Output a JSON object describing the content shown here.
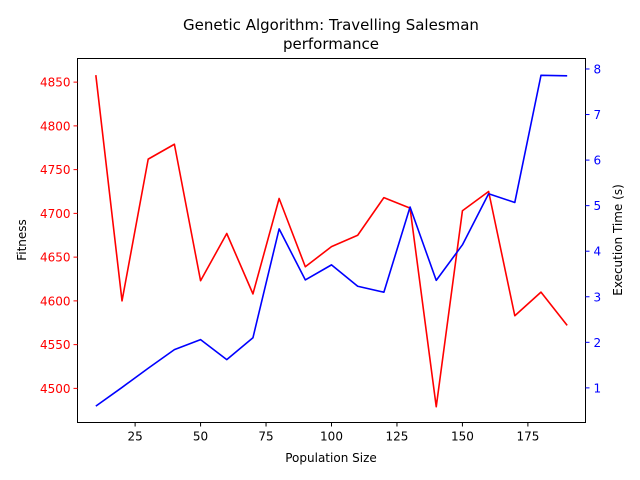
{
  "chart_data": {
    "type": "line",
    "title_lines": [
      "Genetic Algorithm: Travelling Salesman",
      "performance"
    ],
    "xlabel": "Population Size",
    "xlim": [
      3,
      197
    ],
    "xticks": [
      25,
      50,
      75,
      100,
      125,
      150,
      175
    ],
    "x": [
      10,
      20,
      30,
      40,
      50,
      60,
      70,
      80,
      90,
      100,
      110,
      120,
      130,
      140,
      150,
      160,
      170,
      180,
      190
    ],
    "left_axis": {
      "label": "Fitness",
      "color": "#ff0000",
      "ylim": [
        4461,
        4877
      ],
      "ticks": [
        4500,
        4550,
        4600,
        4650,
        4700,
        4750,
        4800,
        4850
      ]
    },
    "right_axis": {
      "label": "Execution Time (s)",
      "color": "#0000ff",
      "ylim": [
        0.24,
        8.23
      ],
      "ticks": [
        1,
        2,
        3,
        4,
        5,
        6,
        7,
        8
      ]
    },
    "series": [
      {
        "axis": "left",
        "color": "#ff0000",
        "values": [
          4858,
          4600,
          4762,
          4779,
          4623,
          4677,
          4608,
          4717,
          4639,
          4662,
          4675,
          4718,
          4706,
          4479,
          4703,
          4725,
          4583,
          4610,
          4572
        ]
      },
      {
        "axis": "right",
        "color": "#0000ff",
        "values": [
          0.6,
          1.01,
          1.43,
          1.84,
          2.06,
          1.62,
          2.1,
          4.49,
          3.37,
          3.7,
          3.23,
          3.1,
          4.97,
          3.36,
          4.14,
          5.26,
          5.07,
          7.86,
          7.85
        ]
      }
    ]
  }
}
